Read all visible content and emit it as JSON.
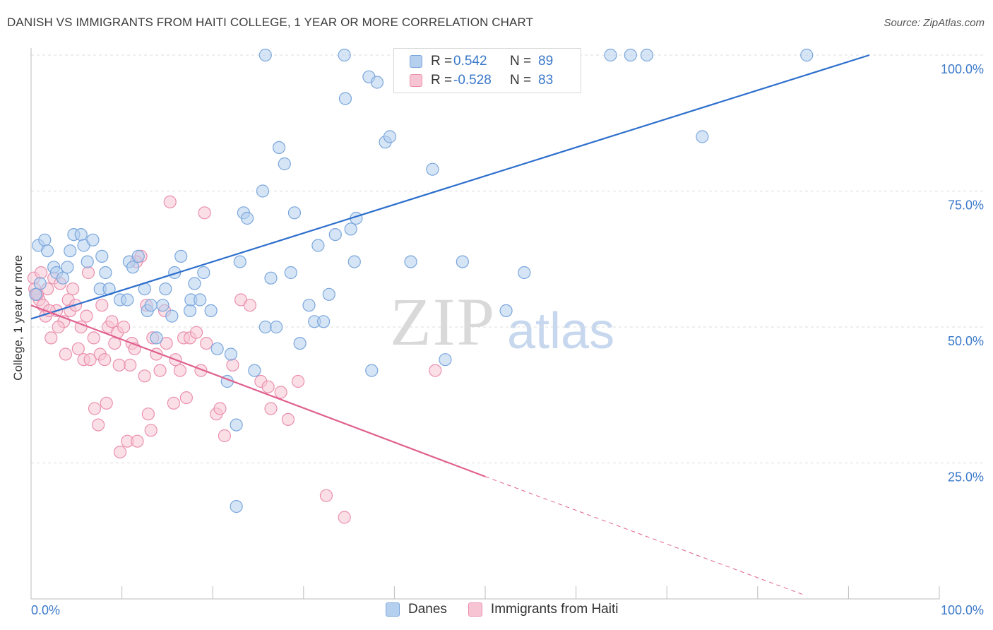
{
  "header": {
    "title": "DANISH VS IMMIGRANTS FROM HAITI COLLEGE, 1 YEAR OR MORE CORRELATION CHART",
    "source": "Source: ZipAtlas.com"
  },
  "watermark": {
    "zip": "ZIP",
    "atlas": "atlas"
  },
  "legend_top": {
    "r_label": "R =",
    "n_label": "N =",
    "rows": [
      {
        "r": "0.542",
        "n": "89"
      },
      {
        "r": "-0.528",
        "n": "83"
      }
    ]
  },
  "colors": {
    "danes_fill": "#b5cfee",
    "danes_stroke": "#7aa6dc",
    "danes_line": "#2d6fcc",
    "haiti_fill": "#f7c4d3",
    "haiti_stroke": "#ea8fae",
    "haiti_line": "#e0608e",
    "tick_text": "#3a78c9",
    "grid": "#dcdcdc"
  },
  "chart_data": {
    "type": "scatter",
    "title": "DANISH VS IMMIGRANTS FROM HAITI COLLEGE, 1 YEAR OR MORE CORRELATION CHART",
    "xlabel": "",
    "ylabel": "College, 1 year or more",
    "xlim": [
      0,
      100
    ],
    "ylim": [
      0,
      100
    ],
    "x_tick_labels": [
      "0.0%",
      "100.0%"
    ],
    "y_tick_labels": [
      "100.0%",
      "75.0%",
      "50.0%",
      "25.0%"
    ],
    "y_ticks": [
      100,
      75,
      50,
      25
    ],
    "grid": true,
    "legend_placement": "bottom",
    "series": [
      {
        "name": "Danes",
        "r": 0.542,
        "n": 89,
        "trend": {
          "x": [
            0,
            92.3
          ],
          "y": [
            51.5,
            100
          ]
        },
        "points": [
          [
            0.8,
            65
          ],
          [
            1.5,
            66
          ],
          [
            1.8,
            64
          ],
          [
            0.5,
            56
          ],
          [
            1,
            58
          ],
          [
            2.5,
            61
          ],
          [
            2.8,
            60
          ],
          [
            3.5,
            59
          ],
          [
            4,
            61
          ],
          [
            4.3,
            64
          ],
          [
            4.7,
            67
          ],
          [
            5.5,
            67
          ],
          [
            5.8,
            65
          ],
          [
            6.2,
            62
          ],
          [
            6.8,
            66
          ],
          [
            7.6,
            57
          ],
          [
            7.8,
            63
          ],
          [
            8.2,
            60
          ],
          [
            8.6,
            57
          ],
          [
            9.8,
            55
          ],
          [
            10.6,
            55
          ],
          [
            10.8,
            62
          ],
          [
            11.2,
            61
          ],
          [
            11.8,
            63
          ],
          [
            12.5,
            57
          ],
          [
            12.8,
            53
          ],
          [
            13.2,
            54
          ],
          [
            13.8,
            48
          ],
          [
            14.5,
            54
          ],
          [
            14.8,
            57
          ],
          [
            15.5,
            52
          ],
          [
            15.8,
            60
          ],
          [
            16.5,
            63
          ],
          [
            17.5,
            53
          ],
          [
            17.6,
            55
          ],
          [
            18,
            58
          ],
          [
            18.6,
            55
          ],
          [
            19,
            60
          ],
          [
            19.8,
            53
          ],
          [
            20.5,
            46
          ],
          [
            21.6,
            40
          ],
          [
            22,
            45
          ],
          [
            22.6,
            32
          ],
          [
            22.6,
            17
          ],
          [
            23,
            62
          ],
          [
            23.4,
            71
          ],
          [
            23.8,
            70
          ],
          [
            24.6,
            42
          ],
          [
            25.5,
            75
          ],
          [
            25.8,
            50
          ],
          [
            26.4,
            59
          ],
          [
            27,
            50
          ],
          [
            27.3,
            83
          ],
          [
            27.9,
            80
          ],
          [
            28.6,
            60
          ],
          [
            29,
            71
          ],
          [
            29.6,
            47
          ],
          [
            30.6,
            54
          ],
          [
            31.2,
            51
          ],
          [
            31.6,
            65
          ],
          [
            32.2,
            51
          ],
          [
            32.8,
            56
          ],
          [
            33.5,
            67
          ],
          [
            34.5,
            100
          ],
          [
            34.6,
            92
          ],
          [
            35.2,
            68
          ],
          [
            35.6,
            62
          ],
          [
            35.8,
            70
          ],
          [
            37.2,
            96
          ],
          [
            37.5,
            42
          ],
          [
            38.1,
            95
          ],
          [
            39,
            84
          ],
          [
            39.5,
            85
          ],
          [
            41.8,
            62
          ],
          [
            43,
            100
          ],
          [
            44.2,
            79
          ],
          [
            45.6,
            44
          ],
          [
            47.5,
            62
          ],
          [
            52.3,
            53
          ],
          [
            54.3,
            60
          ],
          [
            63.8,
            100
          ],
          [
            66,
            100
          ],
          [
            67.8,
            100
          ],
          [
            73.9,
            85
          ],
          [
            85.4,
            100
          ],
          [
            45.4,
            100
          ],
          [
            25.8,
            100
          ]
        ]
      },
      {
        "name": "Immigrants from Haiti",
        "r": -0.528,
        "n": 83,
        "trend": {
          "x": [
            0,
            50
          ],
          "y": [
            54,
            22.5
          ]
        },
        "trend_dashed": {
          "x": [
            50,
            85
          ],
          "y": [
            22.5,
            0.8
          ]
        },
        "points": [
          [
            0.3,
            59
          ],
          [
            0.4,
            57
          ],
          [
            0.6,
            56
          ],
          [
            0.9,
            55
          ],
          [
            1.3,
            54
          ],
          [
            1.6,
            52
          ],
          [
            1.8,
            57
          ],
          [
            2.2,
            48
          ],
          [
            2.5,
            59
          ],
          [
            2.8,
            53
          ],
          [
            3.2,
            58
          ],
          [
            3.6,
            51
          ],
          [
            3.8,
            45
          ],
          [
            4.1,
            55
          ],
          [
            4.3,
            53
          ],
          [
            4.6,
            57
          ],
          [
            4.9,
            54
          ],
          [
            5.2,
            46
          ],
          [
            5.5,
            50
          ],
          [
            5.8,
            44
          ],
          [
            6.1,
            52
          ],
          [
            6.3,
            60
          ],
          [
            6.5,
            44
          ],
          [
            6.9,
            48
          ],
          [
            7,
            35
          ],
          [
            7.4,
            32
          ],
          [
            7.6,
            45
          ],
          [
            7.8,
            54
          ],
          [
            8.1,
            44
          ],
          [
            8.5,
            50
          ],
          [
            8.9,
            51
          ],
          [
            9.2,
            47
          ],
          [
            9.5,
            49
          ],
          [
            9.8,
            27
          ],
          [
            10.2,
            50
          ],
          [
            10.6,
            29
          ],
          [
            10.9,
            43
          ],
          [
            11.1,
            47
          ],
          [
            11.4,
            46
          ],
          [
            11.7,
            29
          ],
          [
            12.1,
            63
          ],
          [
            12.5,
            41
          ],
          [
            12.7,
            54
          ],
          [
            12.9,
            34
          ],
          [
            13.2,
            31
          ],
          [
            13.4,
            48
          ],
          [
            13.8,
            45
          ],
          [
            14.2,
            42
          ],
          [
            14.7,
            53
          ],
          [
            14.9,
            47
          ],
          [
            15.3,
            73
          ],
          [
            15.7,
            36
          ],
          [
            15.9,
            44
          ],
          [
            16.4,
            42
          ],
          [
            16.8,
            48
          ],
          [
            17.1,
            37
          ],
          [
            17.5,
            48
          ],
          [
            18.2,
            49
          ],
          [
            18.7,
            42
          ],
          [
            19.1,
            71
          ],
          [
            19.3,
            47
          ],
          [
            20.4,
            34
          ],
          [
            20.8,
            35
          ],
          [
            21.3,
            30
          ],
          [
            22.2,
            43
          ],
          [
            23.1,
            55
          ],
          [
            24.1,
            54
          ],
          [
            25.3,
            40
          ],
          [
            26.1,
            39
          ],
          [
            26.4,
            35
          ],
          [
            27.5,
            38
          ],
          [
            28.3,
            33
          ],
          [
            29.4,
            40
          ],
          [
            32.5,
            19
          ],
          [
            34.5,
            15
          ],
          [
            44.5,
            42
          ],
          [
            0.7,
            56
          ],
          [
            1.1,
            60
          ],
          [
            2,
            53
          ],
          [
            3,
            50
          ],
          [
            11.6,
            62
          ],
          [
            8.3,
            36
          ],
          [
            9.7,
            43
          ]
        ]
      }
    ]
  },
  "legend_bottom": {
    "items": [
      {
        "label": "Danes"
      },
      {
        "label": "Immigrants from Haiti"
      }
    ]
  }
}
